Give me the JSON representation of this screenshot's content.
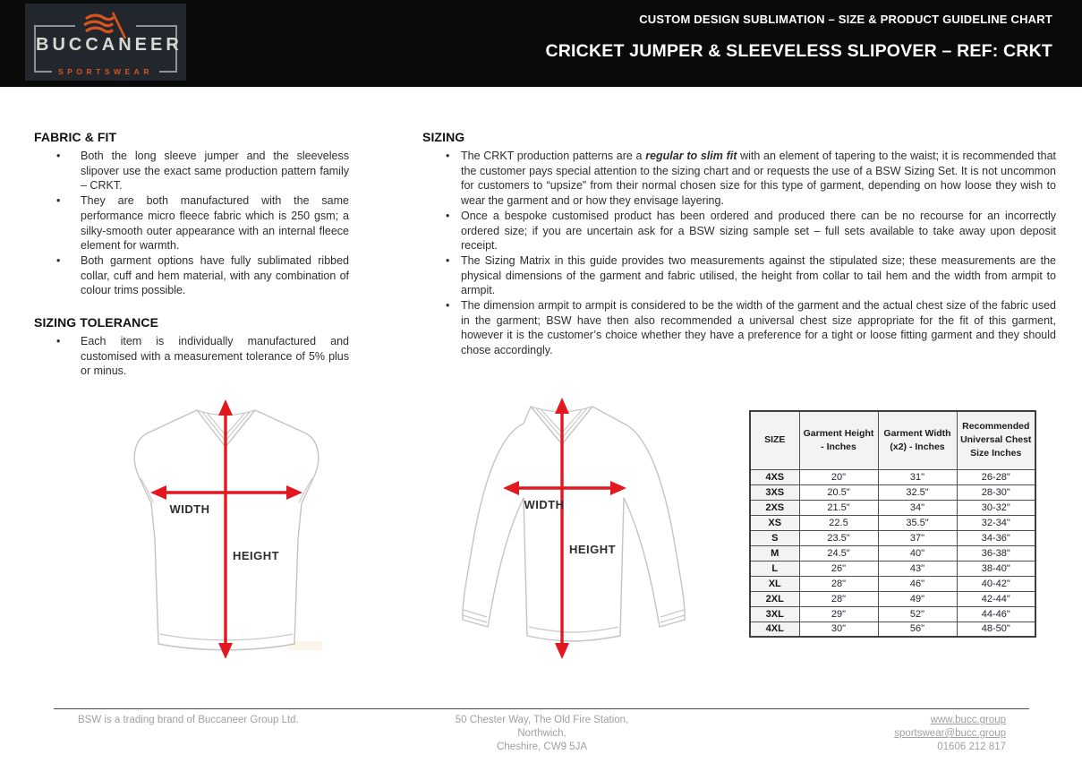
{
  "header": {
    "logo": {
      "brand": "BUCCANEER",
      "sub": "SPORTSWEAR"
    },
    "title_line1": "CUSTOM DESIGN SUBLIMATION – SIZE & PRODUCT GUIDELINE CHART",
    "title_line2": "CRICKET JUMPER & SLEEVELESS SLIPOVER – REF: CRKT"
  },
  "sections": {
    "fabric_fit": {
      "heading": "FABRIC & FIT",
      "bullets": [
        [
          {
            "t": "Both the long sleeve jumper and the sleeveless slipover use the exact same production pattern family – CRKT."
          }
        ],
        [
          {
            "t": "They are both manufactured with the same performance micro fleece fabric which is 250 gsm; a silky-smooth outer appearance with an internal fleece element for warmth."
          }
        ],
        [
          {
            "t": "Both garment options have fully sublimated ribbed collar, cuff and hem material, with any combination of colour trims possible."
          }
        ]
      ]
    },
    "sizing_tolerance": {
      "heading": "SIZING TOLERANCE",
      "bullets": [
        [
          {
            "t": "Each item is individually manufactured and customised with a measurement tolerance of 5% plus or minus."
          }
        ]
      ]
    },
    "sizing": {
      "heading": "SIZING",
      "bullets": [
        [
          {
            "t": "The CRKT production patterns are a "
          },
          {
            "t": "regular to slim fit",
            "s": "bi"
          },
          {
            "t": " with an element of tapering to the waist; it is recommended that the customer pays special attention to the sizing chart and or requests the use of a BSW Sizing Set. It is not uncommon for customers to “upsize” from their normal chosen size for this type of garment, depending on how loose they wish to wear the garment and or how they envisage layering."
          }
        ],
        [
          {
            "t": "Once a bespoke customised product has been ordered and produced there can be no recourse for an incorrectly ordered size; if you are uncertain ask for a BSW sizing sample set – full sets available to take away upon deposit receipt."
          }
        ],
        [
          {
            "t": "The Sizing Matrix in this guide provides two measurements against the stipulated size; these measurements are the physical dimensions of the garment and fabric utilised, the height from collar to tail hem and the width from armpit to armpit."
          }
        ],
        [
          {
            "t": "The dimension armpit to armpit is considered to be the width of the garment and the actual chest size of the fabric used in the garment; BSW have then also recommended a universal chest size appropriate for the fit of this garment, however it is the customer’s choice whether they have a preference for a tight or loose fitting garment and they should chose accordingly."
          }
        ]
      ]
    }
  },
  "diagram_labels": {
    "width": "WIDTH",
    "height": "HEIGHT"
  },
  "size_table": {
    "headers": [
      "SIZE",
      "Garment Height - Inches",
      "Garment Width (x2) - Inches",
      "Recommended Universal Chest Size Inches"
    ],
    "rows": [
      [
        "4XS",
        "20\"",
        "31\"",
        "26-28\""
      ],
      [
        "3XS",
        "20.5\"",
        "32.5\"",
        "28-30\""
      ],
      [
        "2XS",
        "21.5\"",
        "34\"",
        "30-32\""
      ],
      [
        "XS",
        "22.5",
        "35.5\"",
        "32-34\""
      ],
      [
        "S",
        "23.5\"",
        "37\"",
        "34-36\""
      ],
      [
        "M",
        "24.5\"",
        "40\"",
        "36-38\""
      ],
      [
        "L",
        "26\"",
        "43\"",
        "38-40\""
      ],
      [
        "XL",
        "28\"",
        "46\"",
        "40-42\""
      ],
      [
        "2XL",
        "28\"",
        "49\"",
        "42-44\""
      ],
      [
        "3XL",
        "29\"",
        "52\"",
        "44-46\""
      ],
      [
        "4XL",
        "30\"",
        "56\"",
        "48-50\""
      ]
    ]
  },
  "footer": {
    "left": "BSW is a trading brand of Buccaneer Group Ltd.",
    "address_lines": [
      "50 Chester Way, The Old Fire Station,",
      "Northwich,",
      "Cheshire, CW9 5JA"
    ],
    "links": [
      "www.bucc.group",
      "sportswear@bucc.group"
    ],
    "phone": "01606 212 817"
  },
  "colors": {
    "header_bg": "#0a0a0a",
    "accent_orange": "#d9531f",
    "arrow_red": "#e1181f",
    "table_shade": "#f3f3f3",
    "footer_gray": "#a0a0a0"
  }
}
